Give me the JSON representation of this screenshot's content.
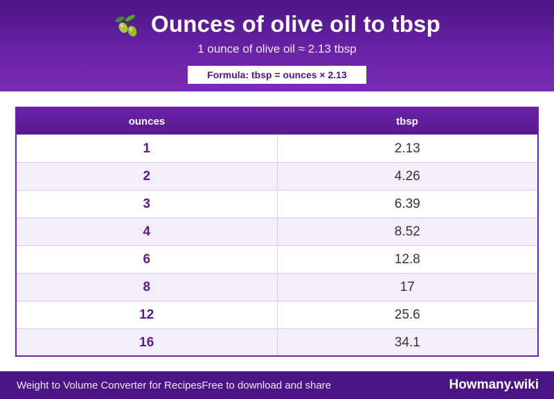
{
  "header": {
    "title": "Ounces of olive oil to tbsp",
    "icon": "olive-icon",
    "subtitle": "1 ounce of olive oil ≈ 2.13 tbsp",
    "formula": "Formula: tbsp = ounces × 2.13"
  },
  "table": {
    "columns": [
      "ounces",
      "tbsp"
    ],
    "rows": [
      [
        "1",
        "2.13"
      ],
      [
        "2",
        "4.26"
      ],
      [
        "3",
        "6.39"
      ],
      [
        "4",
        "8.52"
      ],
      [
        "6",
        "12.8"
      ],
      [
        "8",
        "17"
      ],
      [
        "12",
        "25.6"
      ],
      [
        "16",
        "34.1"
      ]
    ]
  },
  "footer": {
    "left_text": "Weight to Volume Converter for Recipes",
    "middle_text": "Free to download and share",
    "brand": "Howmany.wiki"
  },
  "colors": {
    "header_bg": "#6a22a6",
    "accent": "#4b1585",
    "row_alt": "#f4eefa"
  }
}
